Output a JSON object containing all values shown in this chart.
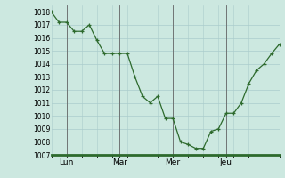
{
  "x_values": [
    0,
    0.5,
    1,
    1.5,
    2,
    2.5,
    3,
    3.5,
    4,
    4.5,
    5,
    5.5,
    6,
    6.5,
    7,
    7.5,
    8,
    8.5,
    9,
    9.5,
    10,
    10.5,
    11,
    11.5,
    12,
    12.5,
    13,
    13.5,
    14,
    14.5,
    15
  ],
  "y_values": [
    1018,
    1017.2,
    1017.2,
    1016.5,
    1016.5,
    1017,
    1015.8,
    1014.8,
    1014.8,
    1014.8,
    1014.8,
    1013,
    1011.5,
    1011,
    1011.5,
    1009.8,
    1009.8,
    1008,
    1007.8,
    1007.5,
    1007.5,
    1008.8,
    1009,
    1010.2,
    1010.2,
    1011,
    1012.5,
    1013.5,
    1014,
    1014.8,
    1015.5
  ],
  "x_tick_positions": [
    1,
    4.5,
    8,
    11.5
  ],
  "x_tick_labels": [
    "Lun",
    "Mar",
    "Mer",
    "Jeu"
  ],
  "x_vlines": [
    1,
    4.5,
    8,
    11.5
  ],
  "ylim": [
    1007,
    1018.5
  ],
  "xlim": [
    0,
    15
  ],
  "yticks": [
    1007,
    1008,
    1009,
    1010,
    1011,
    1012,
    1013,
    1014,
    1015,
    1016,
    1017,
    1018
  ],
  "line_color": "#2d6a2d",
  "marker_color": "#2d6a2d",
  "bg_color": "#cce8e0",
  "grid_color": "#aacccc",
  "vline_color": "#666666",
  "bottom_spine_color": "#2d6a2d"
}
